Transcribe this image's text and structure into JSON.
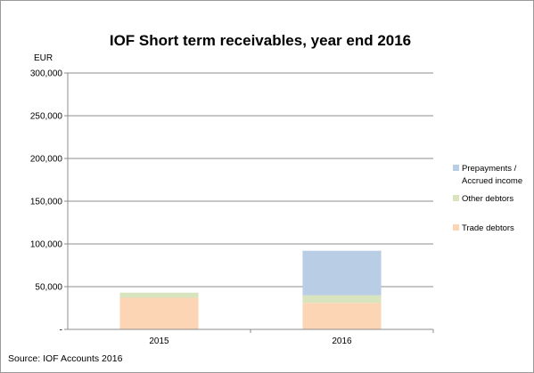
{
  "chart_data": {
    "type": "bar",
    "stacked": true,
    "title": "IOF Short term receivables, year end 2016",
    "ylabel": "EUR",
    "xlabel": "",
    "categories": [
      "2015",
      "2016"
    ],
    "ylim": [
      0,
      300000
    ],
    "y_ticks": [
      "-",
      "50,000",
      "100,000",
      "150,000",
      "200,000",
      "250,000",
      "300,000"
    ],
    "grid": true,
    "legend_position": "right",
    "series": [
      {
        "name": "Trade debtors",
        "values": [
          37000,
          31000
        ],
        "color": "#fcd5b5"
      },
      {
        "name": "Other debtors",
        "values": [
          6000,
          9000
        ],
        "color": "#d7e4bd"
      },
      {
        "name": "Prepayments / Accrued income",
        "values": [
          0,
          52000
        ],
        "color": "#b9cde5"
      }
    ],
    "legend": [
      {
        "series": 2,
        "lines": [
          "Prepayments /",
          "Accrued income"
        ]
      },
      {
        "series": 1,
        "lines": [
          "Other debtors"
        ]
      },
      {
        "series": 0,
        "lines": [
          "Trade debtors"
        ]
      }
    ],
    "source": "Source: IOF Accounts 2016"
  }
}
